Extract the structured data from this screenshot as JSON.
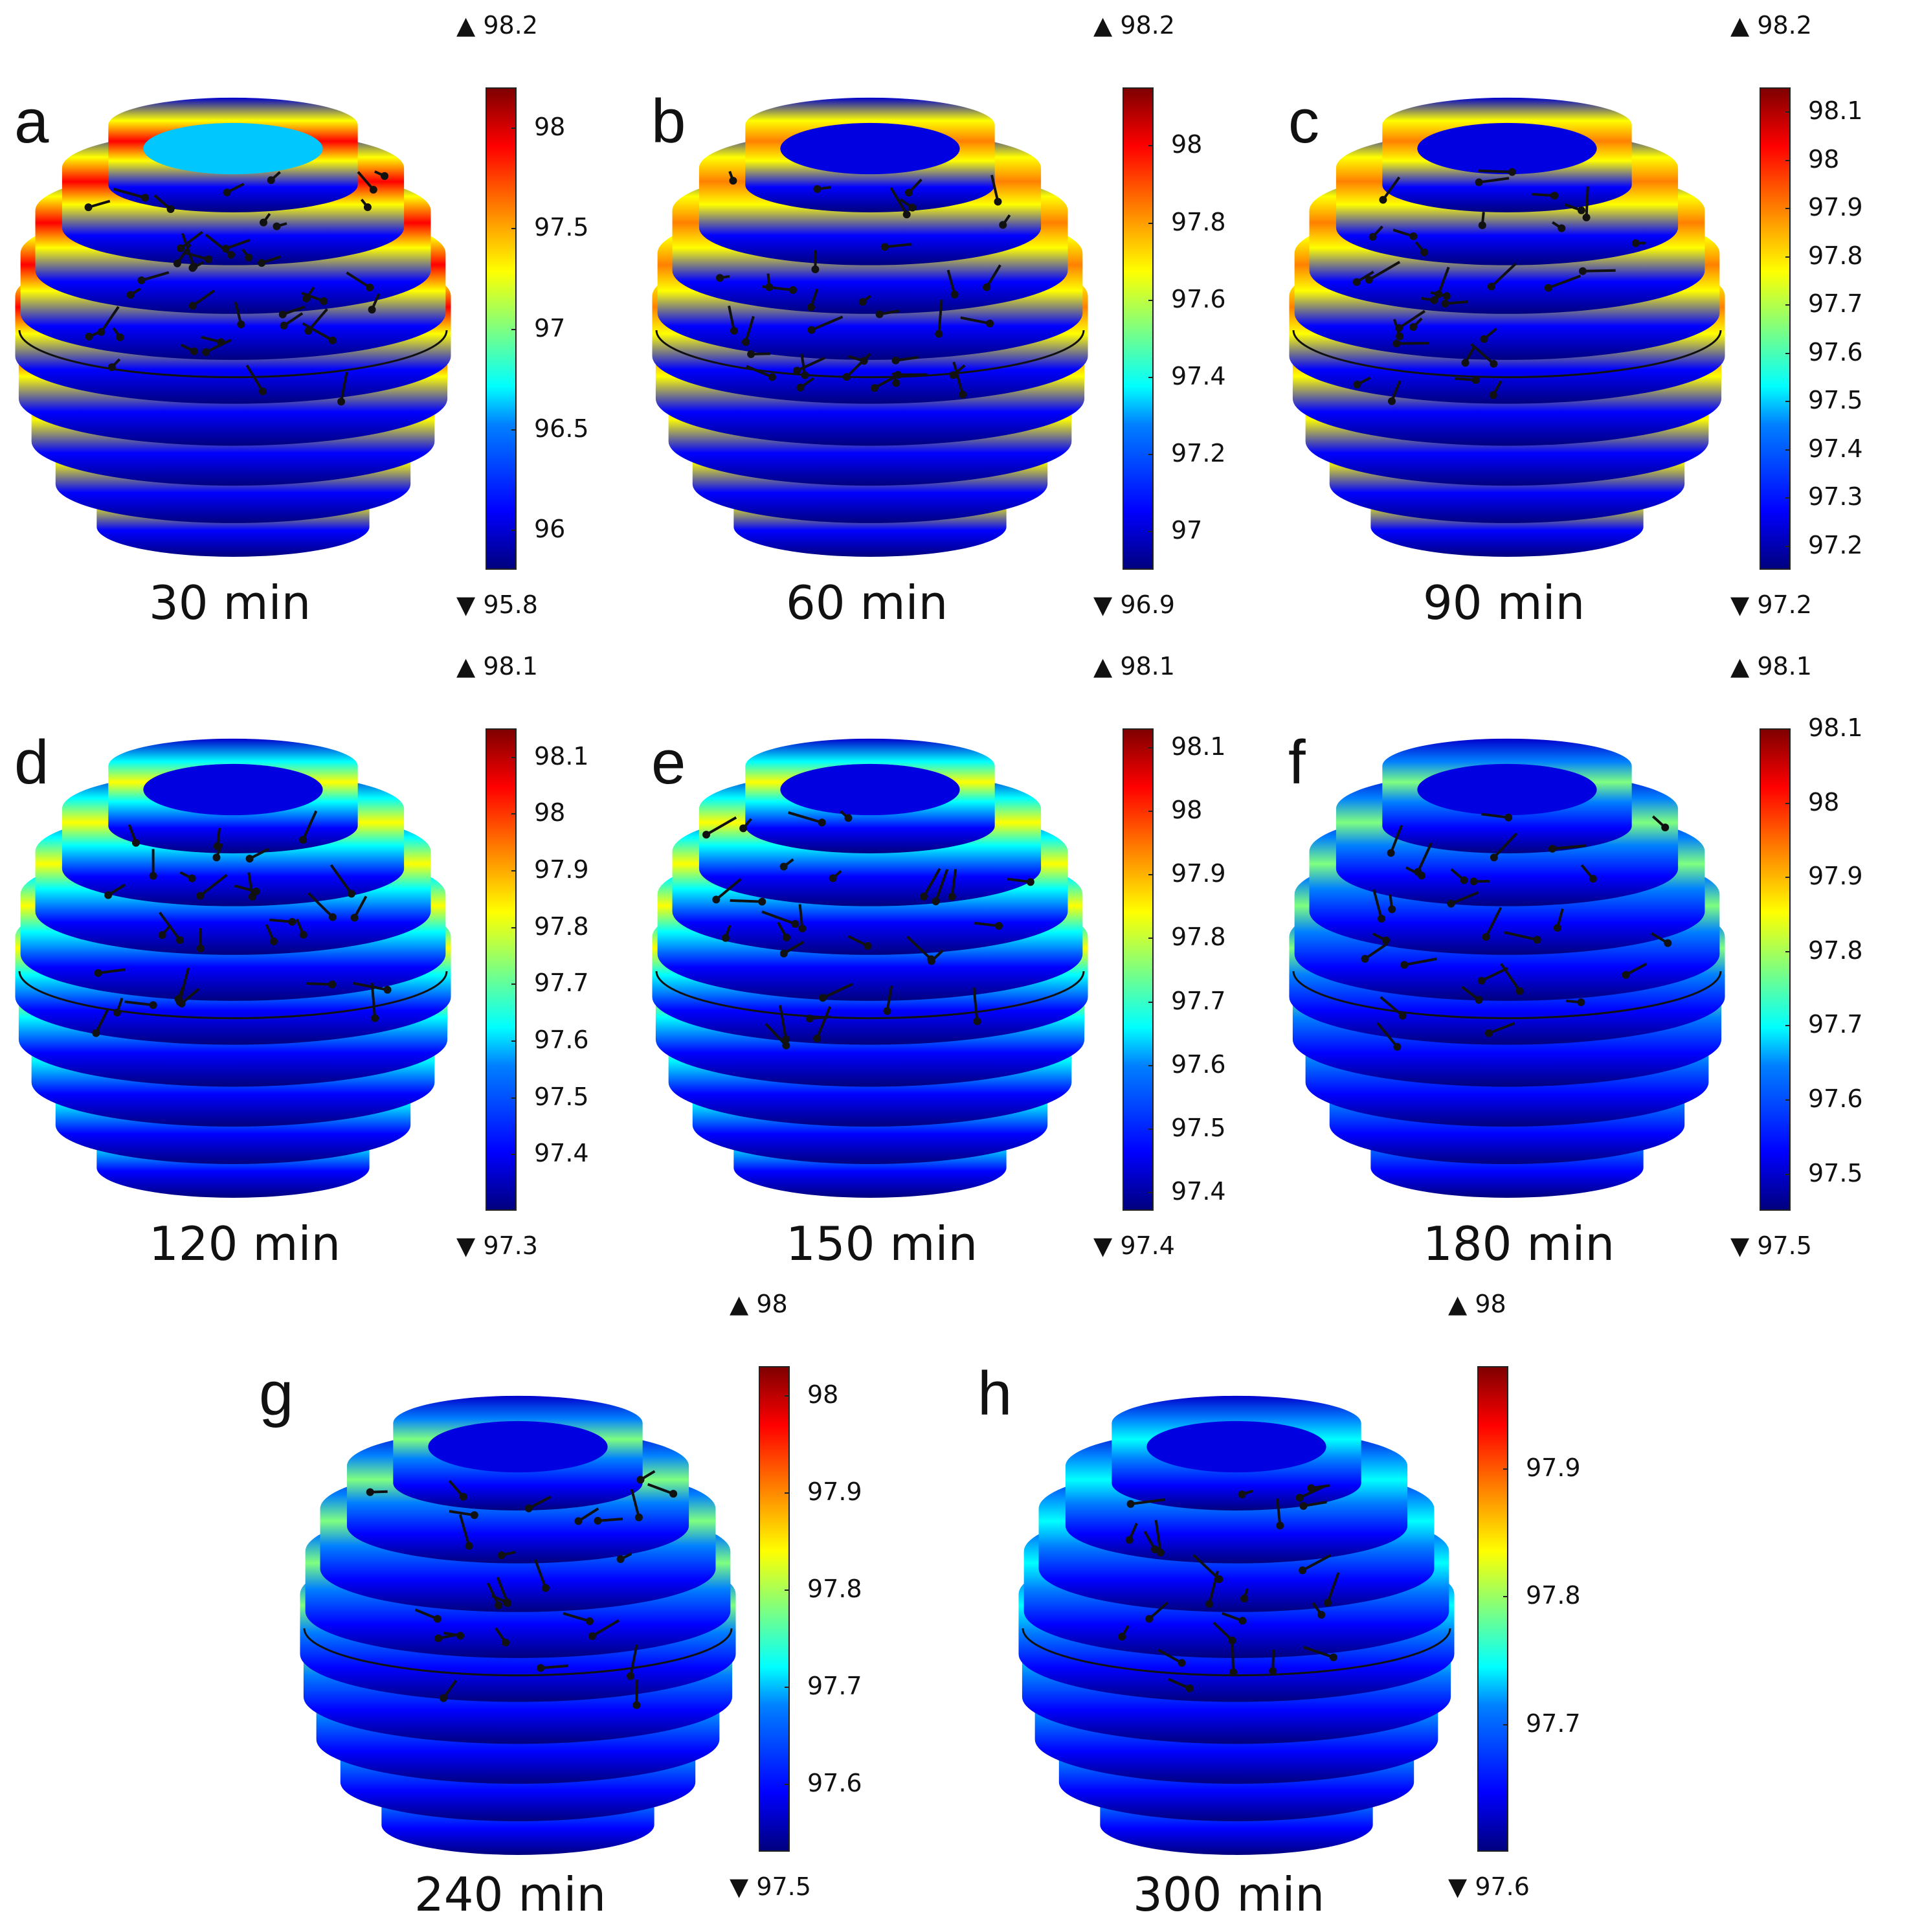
{
  "panels": [
    {
      "letter": "a",
      "time": "30 min",
      "max": "98.2",
      "min": "95.8",
      "ticks": [
        "98",
        "97.5",
        "97",
        "96.5",
        "96"
      ],
      "tick_values": [
        98,
        97.5,
        97,
        96.5,
        96
      ],
      "range": [
        95.8,
        98.2
      ],
      "intensity": 1.0
    },
    {
      "letter": "b",
      "time": "60 min",
      "max": "98.2",
      "min": "96.9",
      "ticks": [
        "98",
        "97.8",
        "97.6",
        "97.4",
        "97.2",
        "97"
      ],
      "tick_values": [
        98,
        97.8,
        97.6,
        97.4,
        97.2,
        97
      ],
      "range": [
        96.9,
        98.15
      ],
      "intensity": 0.75
    },
    {
      "letter": "c",
      "time": "90 min",
      "max": "98.2",
      "min": "97.2",
      "ticks": [
        "98.1",
        "98",
        "97.9",
        "97.8",
        "97.7",
        "97.6",
        "97.5",
        "97.4",
        "97.3",
        "97.2"
      ],
      "tick_values": [
        98.1,
        98,
        97.9,
        97.8,
        97.7,
        97.6,
        97.5,
        97.4,
        97.3,
        97.2
      ],
      "range": [
        97.15,
        98.15
      ],
      "intensity": 0.6
    },
    {
      "letter": "d",
      "time": "120 min",
      "max": "98.1",
      "min": "97.3",
      "ticks": [
        "98.1",
        "98",
        "97.9",
        "97.8",
        "97.7",
        "97.6",
        "97.5",
        "97.4"
      ],
      "tick_values": [
        98.1,
        98,
        97.9,
        97.8,
        97.7,
        97.6,
        97.5,
        97.4
      ],
      "range": [
        97.3,
        98.15
      ],
      "intensity": 0.5
    },
    {
      "letter": "e",
      "time": "150 min",
      "max": "98.1",
      "min": "97.4",
      "ticks": [
        "98.1",
        "98",
        "97.9",
        "97.8",
        "97.7",
        "97.6",
        "97.5",
        "97.4"
      ],
      "tick_values": [
        98.1,
        98,
        97.9,
        97.8,
        97.7,
        97.6,
        97.5,
        97.4
      ],
      "range": [
        97.37,
        98.13
      ],
      "intensity": 0.42
    },
    {
      "letter": "f",
      "time": "180 min",
      "max": "98.1",
      "min": "97.5",
      "ticks": [
        "98.1",
        "98",
        "97.9",
        "97.8",
        "97.7",
        "97.6",
        "97.5"
      ],
      "tick_values": [
        98.1,
        98,
        97.9,
        97.8,
        97.7,
        97.6,
        97.5
      ],
      "range": [
        97.45,
        98.1
      ],
      "intensity": 0.38
    },
    {
      "letter": "g",
      "time": "240 min",
      "max": "98",
      "min": "97.5",
      "ticks": [
        "98",
        "97.9",
        "97.8",
        "97.7",
        "97.6"
      ],
      "tick_values": [
        98,
        97.9,
        97.8,
        97.7,
        97.6
      ],
      "range": [
        97.53,
        98.03
      ],
      "intensity": 0.32
    },
    {
      "letter": "h",
      "time": "300 min",
      "max": "98",
      "min": "97.6",
      "ticks": [
        "97.9",
        "97.8",
        "97.7"
      ],
      "tick_values": [
        97.9,
        97.8,
        97.7
      ],
      "range": [
        97.6,
        97.98
      ],
      "intensity": 0.22
    }
  ],
  "colors": {
    "colormap": [
      "#00007f",
      "#0000ff",
      "#0080ff",
      "#00ffff",
      "#7fff7f",
      "#ffff00",
      "#ff8000",
      "#ff0000",
      "#7f0000"
    ],
    "arrow": "#111111"
  }
}
